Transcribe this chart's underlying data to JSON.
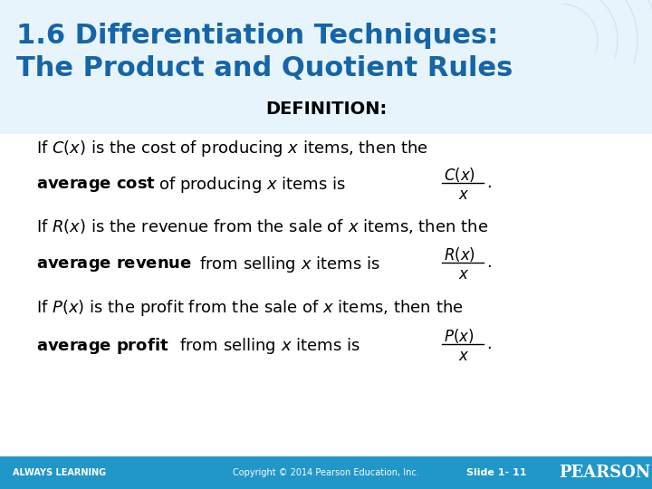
{
  "title_line1": "1.6 Differentiation Techniques:",
  "title_line2": "The Product and Quotient Rules",
  "title_color": "#1565A8",
  "title_fontsize": 22,
  "definition_label": "DEFINITION:",
  "definition_fontsize": 14,
  "body_fontsize": 13,
  "bold_fontsize": 13,
  "bg_color": "#FFFFFF",
  "title_bg_color": "#E8F4FC",
  "footer_bg_color": "#2196C8",
  "footer_text_color": "#FFFFFF",
  "footer_always": "ALWAYS LEARNING",
  "footer_copyright": "Copyright © 2014 Pearson Education, Inc.",
  "footer_slide": "Slide 1- 11",
  "footer_pearson": "PEARSON",
  "watermark_color": "#D0E8F5"
}
